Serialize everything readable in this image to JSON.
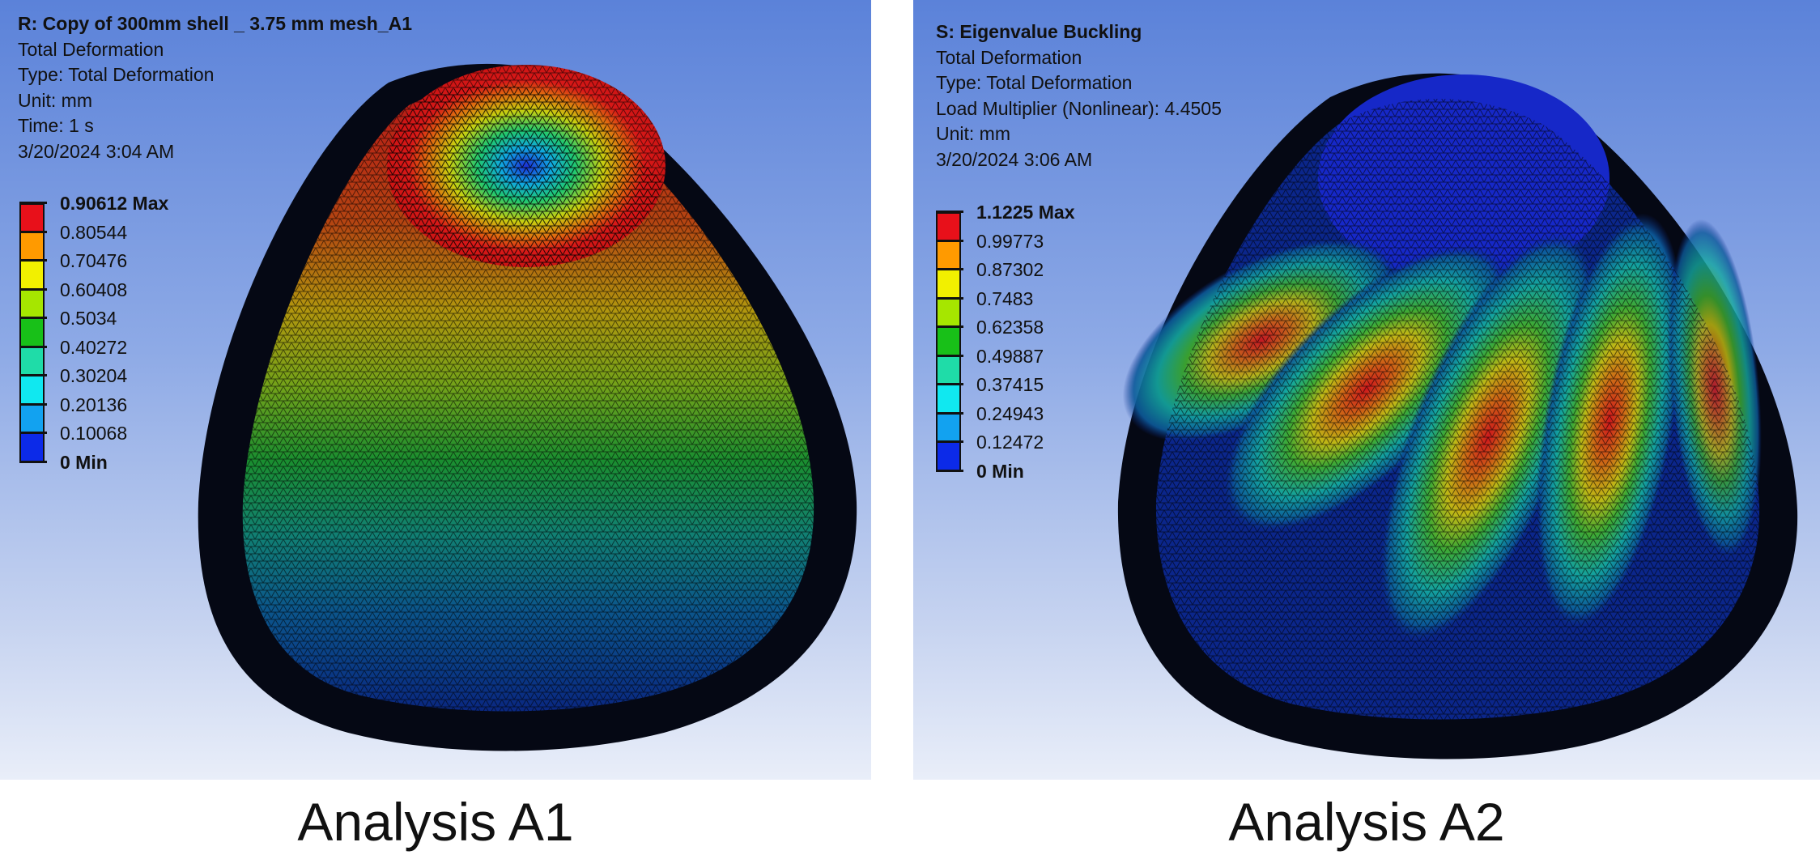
{
  "panels": [
    {
      "header": [
        "R: Copy of 300mm shell _ 3.75 mm mesh_A1",
        "Total Deformation",
        "Type: Total Deformation",
        "Unit: mm",
        "Time: 1 s",
        "3/20/2024 3:04 AM"
      ],
      "legend": [
        "0.90612 Max",
        "0.80544",
        "0.70476",
        "0.60408",
        "0.5034",
        "0.40272",
        "0.30204",
        "0.20136",
        "0.10068",
        "0 Min"
      ],
      "caption": "Analysis A1"
    },
    {
      "header": [
        "S: Eigenvalue Buckling",
        "Total Deformation",
        "Type: Total Deformation",
        "Load Multiplier (Nonlinear): 4.4505",
        "Unit: mm",
        "3/20/2024 3:06 AM"
      ],
      "legend": [
        "1.1225 Max",
        "0.99773",
        "0.87302",
        "0.7483",
        "0.62358",
        "0.49887",
        "0.37415",
        "0.24943",
        "0.12472",
        "0 Min"
      ],
      "caption": "Analysis A2"
    }
  ],
  "legend_colors": [
    "#e8101a",
    "#ff9a00",
    "#f2f000",
    "#a6e600",
    "#18c018",
    "#1fdca8",
    "#10e8f0",
    "#12a2f0",
    "#0c2ae8"
  ]
}
